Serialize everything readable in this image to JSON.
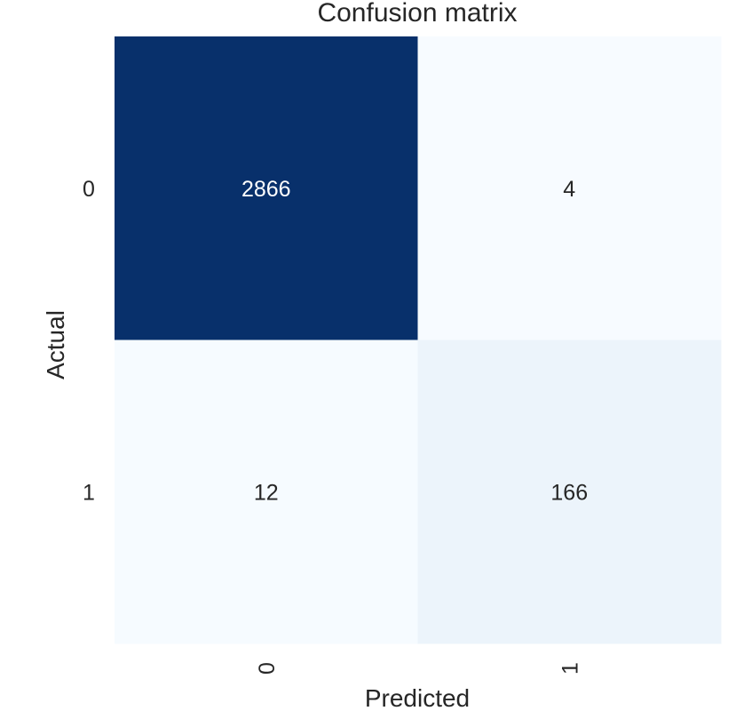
{
  "chart_data": {
    "type": "heatmap",
    "title": "Confusion matrix",
    "xlabel": "Predicted",
    "ylabel": "Actual",
    "x_categories": [
      "0",
      "1"
    ],
    "y_categories": [
      "0",
      "1"
    ],
    "values": [
      [
        2866,
        4
      ],
      [
        12,
        166
      ]
    ],
    "colormap": "Blues",
    "colorbar": false,
    "grid": false,
    "colors": {
      "low": "#f7fbff",
      "high": "#08306b",
      "text_dark": "#262626",
      "text_light": "#ffffff"
    }
  }
}
